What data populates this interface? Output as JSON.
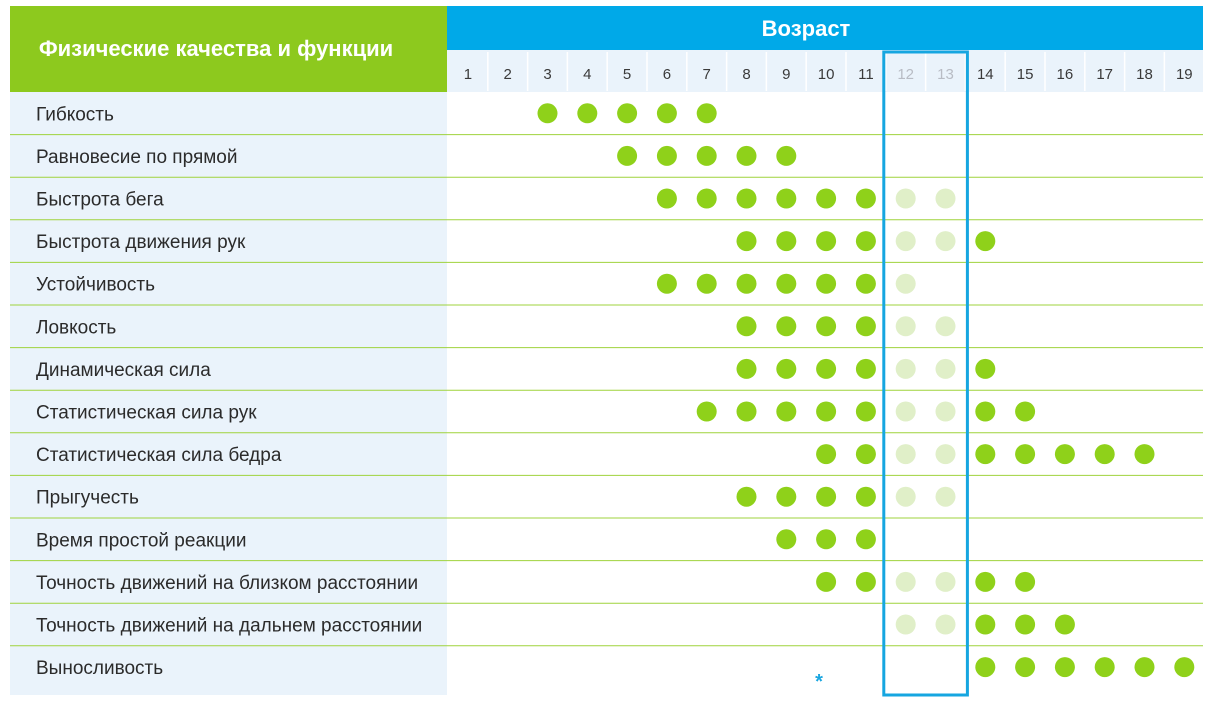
{
  "chart_data": {
    "type": "table",
    "title": "",
    "row_header": "Физические качества и функции",
    "column_header": "Возраст",
    "ages": [
      "1",
      "2",
      "3",
      "4",
      "5",
      "6",
      "7",
      "8",
      "9",
      "10",
      "11",
      "12",
      "13",
      "14",
      "15",
      "16",
      "17",
      "18",
      "19"
    ],
    "highlighted_ages": [
      "12",
      "13"
    ],
    "footnote_marker": "*",
    "rows": [
      {
        "label": "Гибкость",
        "strong": [
          3,
          4,
          5,
          6,
          7
        ],
        "light": []
      },
      {
        "label": "Равновесие по прямой",
        "strong": [
          5,
          6,
          7,
          8,
          9
        ],
        "light": []
      },
      {
        "label": "Быстрота бега",
        "strong": [
          6,
          7,
          8,
          9,
          10,
          11
        ],
        "light": [
          12,
          13
        ]
      },
      {
        "label": "Быстрота движения рук",
        "strong": [
          8,
          9,
          10,
          11,
          14
        ],
        "light": [
          12,
          13
        ]
      },
      {
        "label": "Устойчивость",
        "strong": [
          6,
          7,
          8,
          9,
          10,
          11
        ],
        "light": [
          12
        ]
      },
      {
        "label": "Ловкость",
        "strong": [
          8,
          9,
          10,
          11
        ],
        "light": [
          12,
          13
        ]
      },
      {
        "label": "Динамическая сила",
        "strong": [
          8,
          9,
          10,
          11,
          14
        ],
        "light": [
          12,
          13
        ]
      },
      {
        "label": "Статистическая сила рук",
        "strong": [
          7,
          8,
          9,
          10,
          11,
          14,
          15
        ],
        "light": [
          12,
          13
        ]
      },
      {
        "label": "Статистическая сила бедра",
        "strong": [
          10,
          11,
          14,
          15,
          16,
          17,
          18
        ],
        "light": [
          12,
          13
        ]
      },
      {
        "label": "Прыгучесть",
        "strong": [
          8,
          9,
          10,
          11
        ],
        "light": [
          12,
          13
        ]
      },
      {
        "label": "Время простой реакции",
        "strong": [
          9,
          10,
          11
        ],
        "light": []
      },
      {
        "label": "Точность движений на близком расстоянии",
        "strong": [
          10,
          11,
          14,
          15
        ],
        "light": [
          12,
          13
        ]
      },
      {
        "label": "Точность движений на дальнем расстоянии",
        "strong": [
          14,
          15,
          16
        ],
        "light": [
          12,
          13
        ]
      },
      {
        "label": "Выносливость",
        "strong": [
          14,
          15,
          16,
          17,
          18,
          19
        ],
        "light": []
      }
    ],
    "colors": {
      "header_left_bg": "#8dc91e",
      "header_right_bg": "#00a9e8",
      "label_col_bg": "#eaf3fb",
      "row_line": "#9fd33c",
      "dot_strong": "#8fd11a",
      "dot_light": "#e0efc8",
      "highlight_border": "#16a6e0",
      "age_row_bg": "#eaf3fb"
    }
  }
}
